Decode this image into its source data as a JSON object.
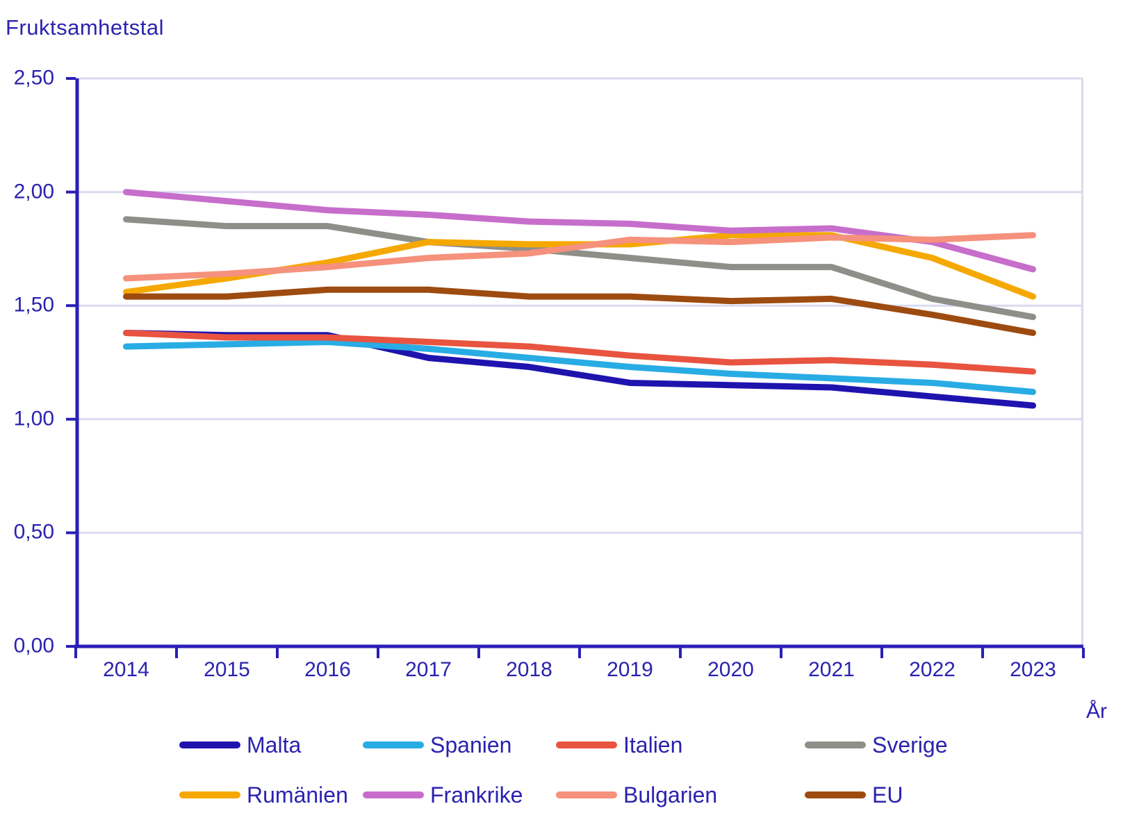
{
  "chart_data": {
    "type": "line",
    "title": "Fruktsamhetstal",
    "xlabel": "År",
    "x_tick_labels": [
      "2014",
      "2015",
      "2016",
      "2017",
      "2018",
      "2019",
      "2020",
      "2021",
      "2022",
      "2023"
    ],
    "y_ticks": [
      {
        "label": "0,00",
        "value": 0.0
      },
      {
        "label": "0,50",
        "value": 0.5
      },
      {
        "label": "1,00",
        "value": 1.0
      },
      {
        "label": "1,50",
        "value": 1.5
      },
      {
        "label": "2,00",
        "value": 2.0
      },
      {
        "label": "2,50",
        "value": 2.5
      }
    ],
    "ylim": [
      0,
      2.5
    ],
    "grid": true,
    "legend_position": "bottom",
    "series": [
      {
        "name": "Malta",
        "color": "#1f13ae",
        "values": [
          1.38,
          1.37,
          1.37,
          1.27,
          1.23,
          1.16,
          1.15,
          1.14,
          1.1,
          1.06
        ]
      },
      {
        "name": "Spanien",
        "color": "#29ace4",
        "values": [
          1.32,
          1.33,
          1.34,
          1.31,
          1.27,
          1.23,
          1.2,
          1.18,
          1.16,
          1.12
        ]
      },
      {
        "name": "Italien",
        "color": "#e85440",
        "values": [
          1.38,
          1.36,
          1.36,
          1.34,
          1.32,
          1.28,
          1.25,
          1.26,
          1.24,
          1.21
        ]
      },
      {
        "name": "Sverige",
        "color": "#8f8f89",
        "values": [
          1.88,
          1.85,
          1.85,
          1.78,
          1.75,
          1.71,
          1.67,
          1.67,
          1.53,
          1.45
        ]
      },
      {
        "name": "Rumänien",
        "color": "#f5a800",
        "values": [
          1.56,
          1.62,
          1.69,
          1.78,
          1.77,
          1.77,
          1.81,
          1.81,
          1.71,
          1.54
        ]
      },
      {
        "name": "Frankrike",
        "color": "#c76ecb",
        "values": [
          2.0,
          1.96,
          1.92,
          1.9,
          1.87,
          1.86,
          1.83,
          1.84,
          1.78,
          1.66
        ]
      },
      {
        "name": "Bulgarien",
        "color": "#f5917c",
        "values": [
          1.62,
          1.64,
          1.67,
          1.71,
          1.73,
          1.79,
          1.78,
          1.8,
          1.79,
          1.81
        ]
      },
      {
        "name": "EU",
        "color": "#9d4b10",
        "values": [
          1.54,
          1.54,
          1.57,
          1.57,
          1.54,
          1.54,
          1.52,
          1.53,
          1.46,
          1.38
        ]
      }
    ],
    "colors": {
      "text": "#2b22ae",
      "axis": "#2b1fb5",
      "gridline": "#dadaf0",
      "background": "#ffffff"
    }
  }
}
